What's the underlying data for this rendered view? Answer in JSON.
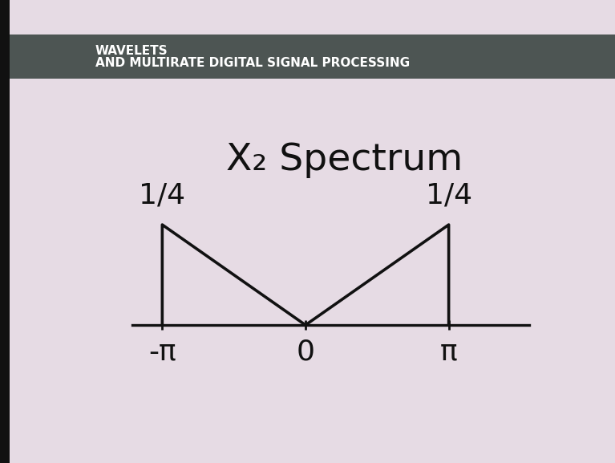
{
  "chart_data": {
    "type": "line",
    "subtitle": "WAVELETS\nAND MULTIRATE DIGITAL SIGNAL PROCESSING",
    "title": "X₂ Spectrum",
    "x": [
      -3.14159,
      -3.14159,
      0,
      3.14159,
      3.14159
    ],
    "values": [
      0,
      0.25,
      0,
      0.25,
      0
    ],
    "color": "#111111",
    "xlim": [
      -3.8,
      4.9
    ],
    "xticks": [
      {
        "value": -3.14159,
        "label": "-π"
      },
      0,
      {
        "value": 3.14159,
        "label": "π"
      }
    ],
    "ylim": [
      0,
      0.3
    ],
    "yticks": [],
    "tick_labels": "x",
    "grid": false,
    "annotations": [
      {
        "text": "1/4",
        "x": -3.14159,
        "y": 0.25
      },
      {
        "text": "1/4",
        "x": 3.14159,
        "y": 0.25
      }
    ]
  }
}
